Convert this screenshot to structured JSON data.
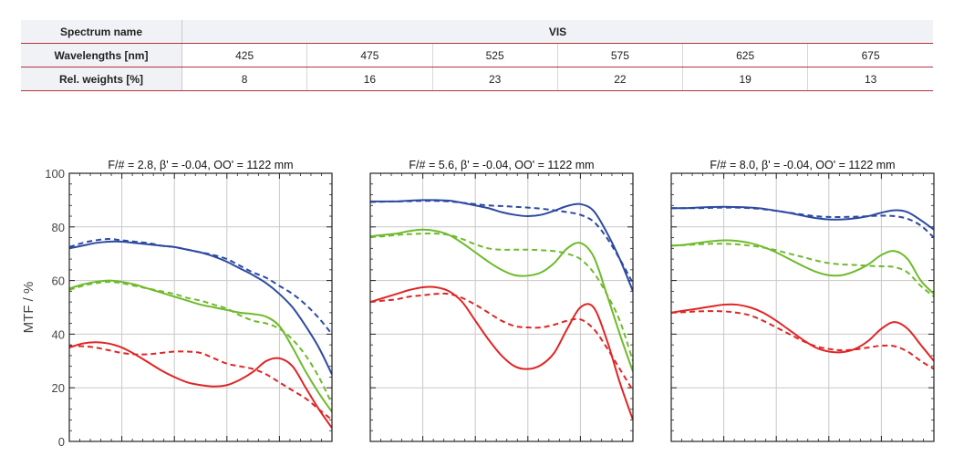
{
  "spectrum_table": {
    "spectrum_label": "Spectrum name",
    "spectrum_value": "VIS",
    "wavelengths_label": "Wavelengths [nm]",
    "weights_label": "Rel. weights [%]",
    "wavelengths": [
      "425",
      "475",
      "525",
      "575",
      "625",
      "675"
    ],
    "weights": [
      "8",
      "16",
      "23",
      "22",
      "19",
      "13"
    ]
  },
  "colors": {
    "blue": "#2e4aa0",
    "green": "#6fba2c",
    "red": "#e02525",
    "grid": "#c8c8c8",
    "frame": "#222222"
  },
  "chart_data": [
    {
      "type": "line",
      "title": "F/# = 2.8, β' = -0.04, OO' = 1122 mm",
      "ylabel": "MTF / %",
      "ylim": [
        0,
        100
      ],
      "yticks": [
        0,
        20,
        40,
        60,
        80,
        100
      ],
      "xlim": [
        0,
        100
      ],
      "grid": true,
      "series": [
        {
          "color": "blue",
          "style": "solid",
          "x": [
            0,
            5,
            10,
            15,
            20,
            25,
            30,
            35,
            40,
            45,
            50,
            55,
            60,
            65,
            70,
            75,
            80,
            85,
            90,
            95,
            100
          ],
          "y": [
            72,
            73,
            74,
            74.5,
            74.5,
            74,
            73.5,
            73,
            72.5,
            71.5,
            70.5,
            69,
            67,
            64.5,
            62,
            59,
            55,
            50,
            43,
            35,
            25
          ]
        },
        {
          "color": "blue",
          "style": "dashed",
          "x": [
            0,
            5,
            10,
            15,
            20,
            25,
            30,
            35,
            40,
            45,
            50,
            55,
            60,
            65,
            70,
            75,
            80,
            85,
            90,
            95,
            100
          ],
          "y": [
            72.5,
            74,
            75,
            75.5,
            75,
            74.5,
            74,
            73,
            72.5,
            71.5,
            70.5,
            69.5,
            68,
            65.5,
            63,
            61,
            58,
            55,
            51,
            46,
            40
          ]
        },
        {
          "color": "green",
          "style": "solid",
          "x": [
            0,
            5,
            10,
            15,
            20,
            25,
            30,
            35,
            40,
            45,
            50,
            55,
            60,
            65,
            70,
            75,
            80,
            85,
            90,
            95,
            100
          ],
          "y": [
            57,
            58.5,
            59.5,
            60,
            59.5,
            58.5,
            57,
            55.5,
            54,
            52.5,
            51,
            50,
            49,
            48,
            47.5,
            46.5,
            43,
            35,
            26,
            18,
            11
          ]
        },
        {
          "color": "green",
          "style": "dashed",
          "x": [
            0,
            5,
            10,
            15,
            20,
            25,
            30,
            35,
            40,
            45,
            50,
            55,
            60,
            65,
            70,
            75,
            80,
            85,
            90,
            95,
            100
          ],
          "y": [
            56.5,
            58,
            59,
            59.5,
            59,
            58,
            57,
            56,
            55,
            53.5,
            52.5,
            51,
            49.5,
            47,
            45,
            44,
            42,
            38,
            32,
            24,
            14
          ]
        },
        {
          "color": "red",
          "style": "solid",
          "x": [
            0,
            5,
            10,
            15,
            20,
            25,
            30,
            35,
            40,
            45,
            50,
            55,
            60,
            65,
            70,
            75,
            80,
            85,
            90,
            95,
            100
          ],
          "y": [
            35,
            36.5,
            37,
            36.5,
            35,
            32.5,
            29.5,
            26.5,
            24,
            22,
            21,
            20.5,
            21,
            23,
            26,
            30,
            31,
            28,
            20,
            12,
            5
          ]
        },
        {
          "color": "red",
          "style": "dashed",
          "x": [
            0,
            5,
            10,
            15,
            20,
            25,
            30,
            35,
            40,
            45,
            50,
            55,
            60,
            65,
            70,
            75,
            80,
            85,
            90,
            95,
            100
          ],
          "y": [
            35.5,
            35.5,
            35,
            34,
            33,
            32.5,
            32.5,
            33,
            33.5,
            33.5,
            33,
            31,
            29,
            28,
            27,
            25,
            22,
            19,
            16,
            12,
            8
          ]
        }
      ]
    },
    {
      "type": "line",
      "title": "F/# = 5.6, β' = -0.04, OO' = 1122 mm",
      "ylim": [
        0,
        100
      ],
      "xlim": [
        0,
        100
      ],
      "grid": true,
      "series": [
        {
          "color": "blue",
          "style": "solid",
          "x": [
            0,
            5,
            10,
            15,
            20,
            25,
            30,
            35,
            40,
            45,
            50,
            55,
            60,
            65,
            70,
            75,
            80,
            85,
            90,
            95,
            100
          ],
          "y": [
            89.5,
            89.5,
            89.5,
            89.8,
            90,
            90,
            89.8,
            89,
            88,
            87,
            85.5,
            84.5,
            84,
            84.5,
            86,
            87.8,
            88.5,
            86,
            78,
            68,
            56
          ]
        },
        {
          "color": "blue",
          "style": "dashed",
          "x": [
            0,
            5,
            10,
            15,
            20,
            25,
            30,
            35,
            40,
            45,
            50,
            55,
            60,
            65,
            70,
            75,
            80,
            85,
            90,
            95,
            100
          ],
          "y": [
            89.3,
            89.4,
            89.5,
            89.6,
            89.7,
            89.7,
            89.5,
            89,
            88.5,
            88,
            87.8,
            87.5,
            87.2,
            86.8,
            86.2,
            85.5,
            84.5,
            82,
            76,
            68,
            59
          ]
        },
        {
          "color": "green",
          "style": "solid",
          "x": [
            0,
            5,
            10,
            15,
            20,
            25,
            30,
            35,
            40,
            45,
            50,
            55,
            60,
            65,
            70,
            75,
            80,
            85,
            90,
            95,
            100
          ],
          "y": [
            76.5,
            77,
            77.5,
            78.5,
            79,
            78.5,
            77,
            74,
            70.5,
            67,
            64,
            62,
            61.8,
            63,
            66.5,
            72,
            74,
            69,
            55,
            40,
            26
          ]
        },
        {
          "color": "green",
          "style": "dashed",
          "x": [
            0,
            5,
            10,
            15,
            20,
            25,
            30,
            35,
            40,
            45,
            50,
            55,
            60,
            65,
            70,
            75,
            80,
            85,
            90,
            95,
            100
          ],
          "y": [
            76.2,
            76.5,
            77,
            77.3,
            77.5,
            77.5,
            77,
            75.5,
            73.5,
            72,
            71.5,
            71.5,
            71.5,
            71.3,
            71,
            70,
            68,
            63,
            55,
            45,
            30
          ]
        },
        {
          "color": "red",
          "style": "solid",
          "x": [
            0,
            5,
            10,
            15,
            20,
            25,
            30,
            35,
            40,
            45,
            50,
            55,
            60,
            65,
            70,
            75,
            80,
            85,
            90,
            95,
            100
          ],
          "y": [
            52,
            53.5,
            55,
            56.5,
            57.5,
            57.5,
            56,
            52,
            45,
            38,
            32,
            28,
            27,
            28.5,
            33,
            42,
            50,
            50,
            38,
            22,
            8
          ]
        },
        {
          "color": "red",
          "style": "dashed",
          "x": [
            0,
            5,
            10,
            15,
            20,
            25,
            30,
            35,
            40,
            45,
            50,
            55,
            60,
            65,
            70,
            75,
            80,
            85,
            90,
            95,
            100
          ],
          "y": [
            52,
            52.5,
            53,
            54,
            54.5,
            55,
            55,
            53.5,
            51,
            48,
            45,
            43,
            42.5,
            42.5,
            43.5,
            45,
            45.5,
            42,
            35,
            27,
            19
          ]
        }
      ]
    },
    {
      "type": "line",
      "title": "F/# = 8.0, β' = -0.04, OO' = 1122 mm",
      "ylim": [
        0,
        100
      ],
      "xlim": [
        0,
        100
      ],
      "grid": true,
      "series": [
        {
          "color": "blue",
          "style": "solid",
          "x": [
            0,
            5,
            10,
            15,
            20,
            25,
            30,
            35,
            40,
            45,
            50,
            55,
            60,
            65,
            70,
            75,
            80,
            85,
            90,
            95,
            100
          ],
          "y": [
            87,
            87,
            87.2,
            87.4,
            87.5,
            87.4,
            87.2,
            86.8,
            86,
            85.2,
            84.2,
            83.3,
            82.8,
            82.8,
            83.2,
            84,
            85.3,
            86.2,
            85.5,
            82.5,
            79
          ]
        },
        {
          "color": "blue",
          "style": "dashed",
          "x": [
            0,
            5,
            10,
            15,
            20,
            25,
            30,
            35,
            40,
            45,
            50,
            55,
            60,
            65,
            70,
            75,
            80,
            85,
            90,
            95,
            100
          ],
          "y": [
            87,
            87,
            87,
            87.1,
            87.2,
            87.2,
            87,
            86.6,
            86,
            85.3,
            84.6,
            84,
            83.7,
            83.7,
            83.8,
            84,
            84.2,
            84,
            83,
            80.5,
            76
          ]
        },
        {
          "color": "green",
          "style": "solid",
          "x": [
            0,
            5,
            10,
            15,
            20,
            25,
            30,
            35,
            40,
            45,
            50,
            55,
            60,
            65,
            70,
            75,
            80,
            85,
            90,
            95,
            100
          ],
          "y": [
            73,
            73.3,
            74,
            74.6,
            75,
            74.8,
            74,
            72.5,
            70.5,
            68,
            65.5,
            63.3,
            62,
            62,
            63.5,
            66,
            69.5,
            71,
            68,
            60,
            55
          ]
        },
        {
          "color": "green",
          "style": "dashed",
          "x": [
            0,
            5,
            10,
            15,
            20,
            25,
            30,
            35,
            40,
            45,
            50,
            55,
            60,
            65,
            70,
            75,
            80,
            85,
            90,
            95,
            100
          ],
          "y": [
            73,
            73.2,
            73.5,
            73.7,
            73.7,
            73.5,
            73,
            72.3,
            71.3,
            70,
            68.8,
            67.5,
            66.5,
            66,
            65.8,
            65.5,
            65.3,
            65,
            63,
            58,
            54
          ]
        },
        {
          "color": "red",
          "style": "solid",
          "x": [
            0,
            5,
            10,
            15,
            20,
            25,
            30,
            35,
            40,
            45,
            50,
            55,
            60,
            65,
            70,
            75,
            80,
            85,
            90,
            95,
            100
          ],
          "y": [
            48,
            48.8,
            49.5,
            50.3,
            51,
            51,
            50,
            48,
            45,
            41.5,
            38,
            35,
            33.5,
            33.3,
            34.5,
            37.5,
            42,
            44.5,
            42,
            36,
            30
          ]
        },
        {
          "color": "red",
          "style": "dashed",
          "x": [
            0,
            5,
            10,
            15,
            20,
            25,
            30,
            35,
            40,
            45,
            50,
            55,
            60,
            65,
            70,
            75,
            80,
            85,
            90,
            95,
            100
          ],
          "y": [
            48,
            48.2,
            48.5,
            48.6,
            48.5,
            48,
            47,
            45,
            42.5,
            40,
            37.5,
            35.5,
            34.5,
            34,
            34.3,
            35,
            35.7,
            35.5,
            33.5,
            30,
            27
          ]
        }
      ]
    }
  ]
}
